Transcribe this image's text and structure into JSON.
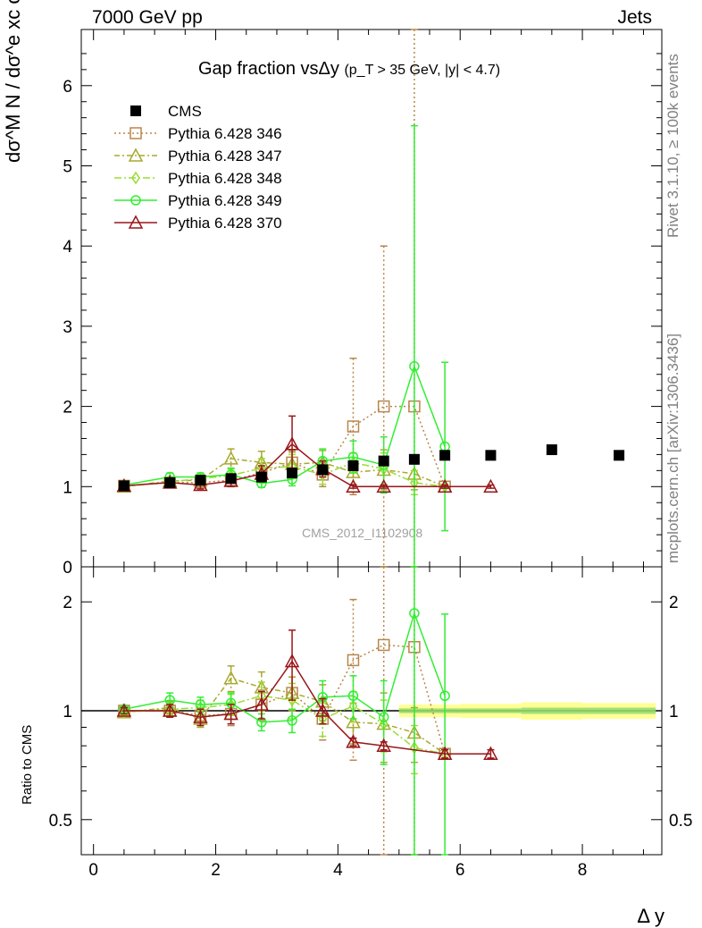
{
  "header": {
    "energy_label": "7000 GeV pp",
    "category_label": "Jets"
  },
  "side": {
    "rivet_label": "Rivet 3.1.10, ≥ 100k events",
    "source_label": "mcplots.cern.ch [arXiv:1306.3436]"
  },
  "chart_data": {
    "type": "line",
    "title_main": "Gap fraction vsΔy",
    "title_sub": "(p_T > 35 GeV, |y| < 4.7)",
    "analysis_id": "CMS_2012_I1102908",
    "ylabel": "dσ^M N / dσ^e xc over d y",
    "ratio_ylabel": "Ratio to CMS",
    "xlabel": "Δ y",
    "xlim": [
      -0.2,
      9.3
    ],
    "ylim": [
      0,
      6.7
    ],
    "ratio_ylim": [
      0.4,
      2.5
    ],
    "ratio_yscale": "log",
    "x_ticks": [
      "0",
      "2",
      "4",
      "6",
      "8"
    ],
    "y_ticks": [
      "0",
      "1",
      "2",
      "3",
      "4",
      "5",
      "6"
    ],
    "ratio_y_ticks": [
      "0.5",
      "1",
      "2"
    ],
    "legend_position": "top-left",
    "data": {
      "name": "CMS",
      "color": "#000000",
      "x": [
        0.5,
        1.25,
        1.75,
        2.25,
        2.75,
        3.25,
        3.75,
        4.25,
        4.75,
        5.25,
        5.75,
        6.5,
        7.5,
        8.6
      ],
      "y": [
        1.01,
        1.05,
        1.08,
        1.1,
        1.12,
        1.17,
        1.21,
        1.26,
        1.32,
        1.34,
        1.39,
        1.39,
        1.46,
        1.39
      ]
    },
    "band": {
      "color_inner": "#66cc66",
      "color_outer": "#ffff66",
      "x_edges": [
        5.0,
        6.0,
        7.0,
        8.0,
        9.2
      ],
      "inner": [
        0.015,
        0.015,
        0.02,
        0.02
      ],
      "outer": [
        0.04,
        0.045,
        0.055,
        0.05
      ]
    },
    "series": [
      {
        "name": "Pythia 6.428 346",
        "color": "#b8864a",
        "marker": "square",
        "dash": "2,3",
        "x": [
          0.5,
          1.25,
          1.75,
          2.25,
          2.75,
          3.25,
          3.75,
          4.25,
          4.75,
          5.25,
          5.75
        ],
        "y": [
          1.01,
          1.05,
          1.05,
          1.08,
          1.17,
          1.3,
          1.15,
          1.75,
          2.0,
          2.0,
          1.0
        ],
        "err": [
          0.02,
          0.04,
          0.05,
          0.08,
          0.12,
          0.15,
          0.15,
          0.85,
          2.0,
          5.0,
          0.02
        ],
        "ratio": [
          1.0,
          1.0,
          0.97,
          0.98,
          1.04,
          1.12,
          0.95,
          1.38,
          1.52,
          1.5,
          0.76
        ],
        "ratio_err": [
          0.02,
          0.04,
          0.05,
          0.07,
          0.1,
          0.12,
          0.12,
          0.65,
          1.6,
          3.0,
          0.02
        ]
      },
      {
        "name": "Pythia 6.428 347",
        "color": "#a8a830",
        "marker": "triangle",
        "dash": "6,3,2,3",
        "x": [
          0.5,
          1.25,
          1.75,
          2.25,
          2.75,
          3.25,
          3.75,
          4.25,
          4.75,
          5.25,
          5.75
        ],
        "y": [
          1.0,
          1.07,
          1.08,
          1.35,
          1.3,
          1.28,
          1.3,
          1.18,
          1.21,
          1.16,
          1.0
        ],
        "err": [
          0.02,
          0.04,
          0.05,
          0.12,
          0.14,
          0.15,
          0.15,
          0.15,
          0.25,
          0.2,
          0.02
        ],
        "ratio": [
          0.99,
          1.02,
          0.95,
          1.23,
          1.16,
          1.12,
          1.06,
          0.93,
          0.92,
          0.87,
          0.76
        ],
        "ratio_err": [
          0.02,
          0.04,
          0.05,
          0.1,
          0.12,
          0.12,
          0.12,
          0.12,
          0.2,
          0.15,
          0.02
        ]
      },
      {
        "name": "Pythia 6.428 348",
        "color": "#99dd33",
        "marker": "diamond",
        "dash": "8,3,2,3",
        "x": [
          0.5,
          1.25,
          1.75,
          2.25,
          2.75,
          3.25,
          3.75,
          4.25,
          4.75,
          5.25,
          5.75
        ],
        "y": [
          1.0,
          1.06,
          1.1,
          1.14,
          1.23,
          1.25,
          1.15,
          1.3,
          1.22,
          1.05,
          1.0
        ],
        "err": [
          0.02,
          0.04,
          0.05,
          0.08,
          0.12,
          0.15,
          0.12,
          0.12,
          0.2,
          0.15,
          0.02
        ],
        "ratio": [
          0.99,
          1.01,
          1.02,
          1.04,
          1.1,
          1.07,
          0.95,
          1.03,
          0.92,
          0.79,
          0.76
        ],
        "ratio_err": [
          0.02,
          0.04,
          0.05,
          0.07,
          0.1,
          0.12,
          0.1,
          0.1,
          0.15,
          0.12,
          0.02
        ]
      },
      {
        "name": "Pythia 6.428 349",
        "color": "#33ee33",
        "marker": "circle",
        "dash": "",
        "x": [
          0.5,
          1.25,
          1.75,
          2.25,
          2.75,
          3.25,
          3.75,
          4.25,
          4.75,
          5.25,
          5.75
        ],
        "y": [
          1.02,
          1.12,
          1.12,
          1.15,
          1.04,
          1.09,
          1.32,
          1.37,
          1.27,
          2.5,
          1.5
        ],
        "err": [
          0.02,
          0.05,
          0.05,
          0.08,
          0.05,
          0.08,
          0.15,
          0.2,
          0.35,
          3.0,
          1.05
        ],
        "ratio": [
          1.01,
          1.07,
          1.04,
          1.05,
          0.93,
          0.94,
          1.09,
          1.1,
          0.96,
          1.86,
          1.1
        ],
        "ratio_err": [
          0.02,
          0.05,
          0.05,
          0.07,
          0.05,
          0.07,
          0.12,
          0.15,
          0.25,
          2.2,
          0.75
        ]
      },
      {
        "name": "Pythia 6.428 370",
        "color": "#99161b",
        "marker": "triangle",
        "dash": "",
        "x": [
          0.5,
          1.25,
          1.75,
          2.25,
          2.75,
          3.25,
          3.75,
          4.25,
          4.75,
          5.75,
          6.5
        ],
        "y": [
          1.01,
          1.05,
          1.02,
          1.07,
          1.16,
          1.53,
          1.22,
          1.0,
          1.0,
          1.0,
          1.0
        ],
        "err": [
          0.02,
          0.04,
          0.05,
          0.07,
          0.1,
          0.35,
          0.1,
          0.02,
          0.02,
          0.02,
          0.02
        ],
        "ratio": [
          1.0,
          1.0,
          0.96,
          0.98,
          1.04,
          1.37,
          1.0,
          0.82,
          0.8,
          0.76,
          0.76
        ],
        "ratio_err": [
          0.02,
          0.04,
          0.05,
          0.06,
          0.09,
          0.3,
          0.08,
          0.02,
          0.02,
          0.02,
          0.02
        ]
      }
    ]
  }
}
